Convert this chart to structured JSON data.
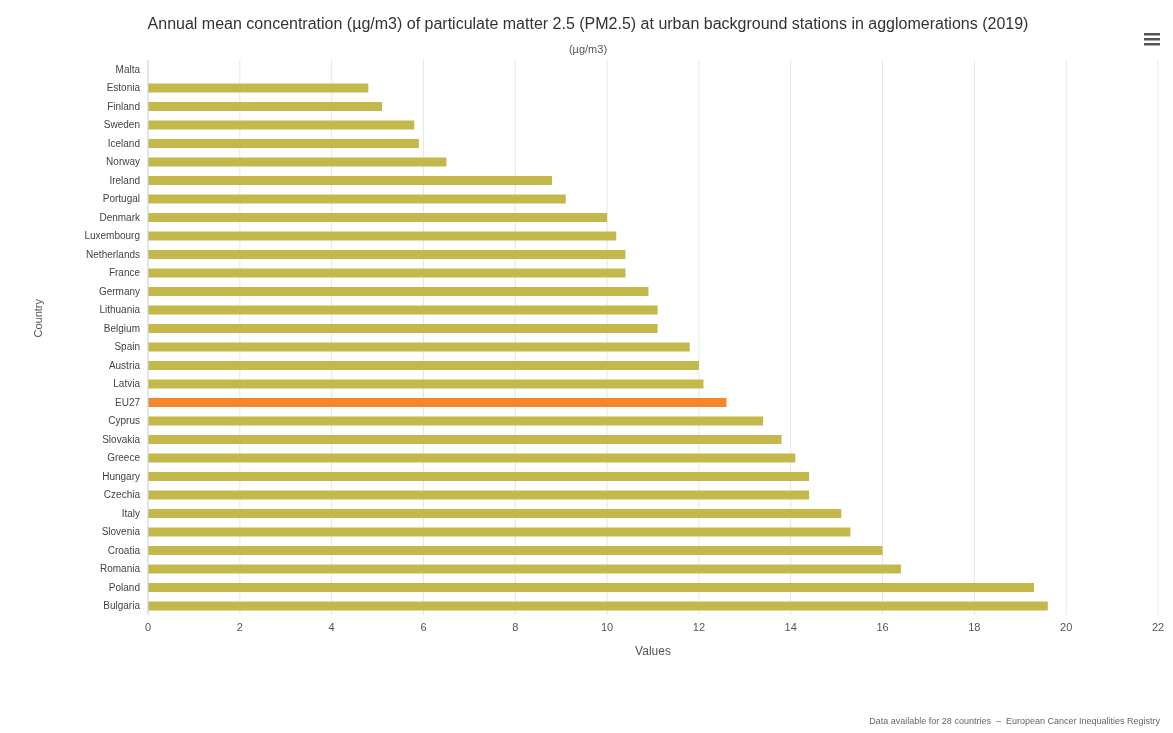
{
  "chart_data": {
    "type": "bar",
    "orientation": "horizontal",
    "title": "Annual mean concentration (µg/m3) of particulate matter 2.5 (PM2.5) at urban background stations in agglomerations (2019)",
    "subtitle": "(µg/m3)",
    "xlabel": "Values",
    "ylabel": "Country",
    "categories": [
      "Malta",
      "Estonia",
      "Finland",
      "Sweden",
      "Iceland",
      "Norway",
      "Ireland",
      "Portugal",
      "Denmark",
      "Luxembourg",
      "Netherlands",
      "France",
      "Germany",
      "Lithuania",
      "Belgium",
      "Spain",
      "Austria",
      "Latvia",
      "EU27",
      "Cyprus",
      "Slovakia",
      "Greece",
      "Hungary",
      "Czechia",
      "Italy",
      "Slovenia",
      "Croatia",
      "Romania",
      "Poland",
      "Bulgaria"
    ],
    "values": [
      null,
      4.8,
      5.1,
      5.8,
      5.9,
      6.5,
      8.8,
      9.1,
      10.0,
      10.2,
      10.4,
      10.4,
      10.9,
      11.1,
      11.1,
      11.8,
      12.0,
      12.1,
      12.6,
      13.4,
      13.8,
      14.1,
      14.4,
      14.4,
      15.1,
      15.3,
      16.0,
      16.4,
      19.3,
      19.6
    ],
    "colors": [
      "#c4b84a",
      "#c4b84a",
      "#c4b84a",
      "#c4b84a",
      "#c4b84a",
      "#c4b84a",
      "#c4b84a",
      "#c4b84a",
      "#c4b84a",
      "#c4b84a",
      "#c4b84a",
      "#c4b84a",
      "#c4b84a",
      "#c4b84a",
      "#c4b84a",
      "#c4b84a",
      "#c4b84a",
      "#c4b84a",
      "#f5862d",
      "#c4b84a",
      "#c4b84a",
      "#c4b84a",
      "#c4b84a",
      "#c4b84a",
      "#c4b84a",
      "#c4b84a",
      "#c4b84a",
      "#c4b84a",
      "#c4b84a",
      "#c4b84a"
    ],
    "xlim": [
      0,
      22
    ],
    "xticks": [
      0,
      2,
      4,
      6,
      8,
      10,
      12,
      14,
      16,
      18,
      20,
      22
    ],
    "grid": "x",
    "legend": false,
    "annotations": [
      "Data available for 28 countries  –  European Cancer Inequalities Registry"
    ]
  }
}
